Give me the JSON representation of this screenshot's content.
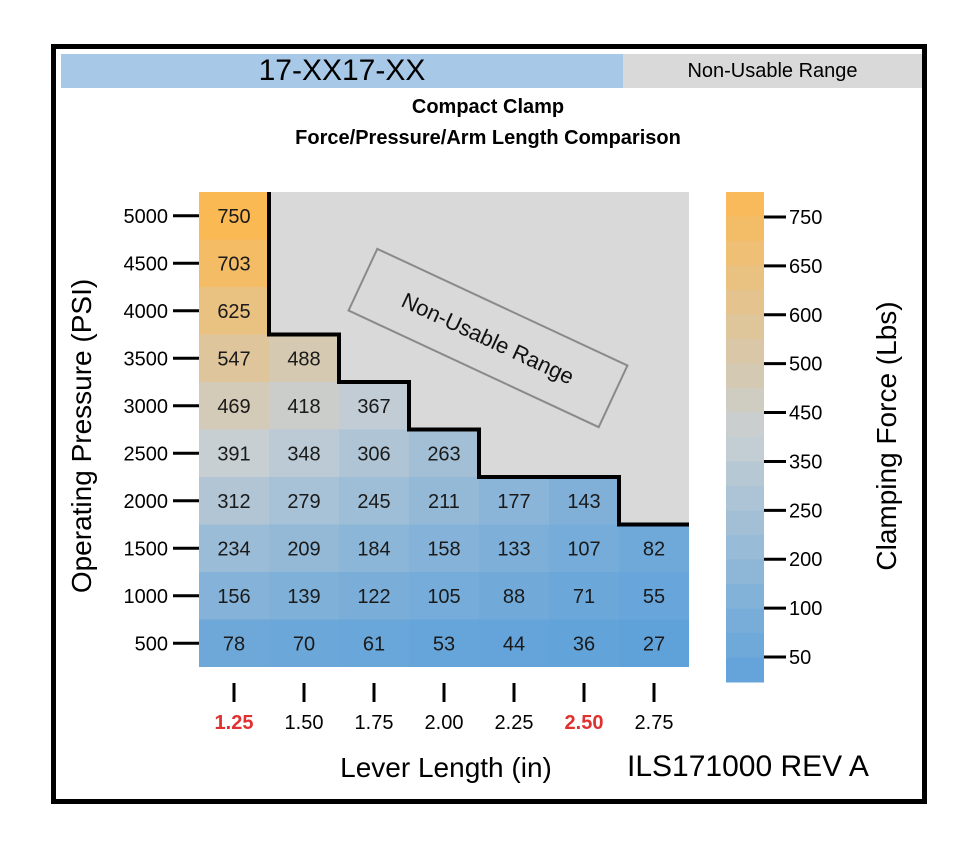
{
  "header": {
    "model": "17-XX17-XX",
    "non_usable_label": "Non-Usable Range"
  },
  "chart_data": {
    "type": "heatmap",
    "title": "Compact Clamp",
    "subtitle": "Force/Pressure/Arm Length Comparison",
    "xlabel": "Lever Length (in)",
    "ylabel": "Operating Pressure (PSI)",
    "colorbar_label": "Clamping Force (Lbs)",
    "x": [
      "1.25",
      "1.50",
      "1.75",
      "2.00",
      "2.25",
      "2.50",
      "2.75"
    ],
    "highlighted_x": [
      "1.25",
      "2.50"
    ],
    "highlight_color": "#e03030",
    "y": [
      5000,
      4500,
      4000,
      3500,
      3000,
      2500,
      2000,
      1500,
      1000,
      500
    ],
    "values": [
      [
        750,
        null,
        null,
        null,
        null,
        null,
        null
      ],
      [
        703,
        null,
        null,
        null,
        null,
        null,
        null
      ],
      [
        625,
        null,
        null,
        null,
        null,
        null,
        null
      ],
      [
        547,
        488,
        null,
        null,
        null,
        null,
        null
      ],
      [
        469,
        418,
        367,
        null,
        null,
        null,
        null
      ],
      [
        391,
        348,
        306,
        263,
        null,
        null,
        null
      ],
      [
        312,
        279,
        245,
        211,
        177,
        143,
        null
      ],
      [
        234,
        209,
        184,
        158,
        133,
        107,
        82
      ],
      [
        156,
        139,
        122,
        105,
        88,
        71,
        55
      ],
      [
        78,
        70,
        61,
        53,
        44,
        36,
        27
      ]
    ],
    "non_usable_annotation": "Non-Usable Range",
    "non_usable_color": "#d9d9d9",
    "colorbar_ticks": [
      750,
      650,
      600,
      500,
      450,
      350,
      250,
      200,
      100,
      50
    ],
    "color_scale": {
      "low": "#5fa2da",
      "mid": "#c7cfd4",
      "high": "#fbb954"
    }
  },
  "footer": {
    "doc_id": "ILS171000 REV A"
  }
}
